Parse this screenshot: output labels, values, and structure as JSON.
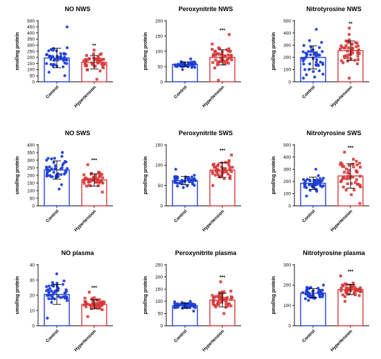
{
  "chart_data": [
    {
      "type": "bar",
      "title": "NO NWS",
      "ylabel": "nmol/mg protein",
      "ylim": [
        0,
        500
      ],
      "yticks": [
        0,
        50,
        100,
        150,
        200,
        250,
        300,
        350,
        400,
        450,
        500
      ],
      "categories": [
        "Control",
        "Hypertension"
      ],
      "values": [
        195,
        160
      ],
      "errors": [
        80,
        55
      ],
      "significance": [
        "",
        "**"
      ],
      "point_ranges": [
        [
          50,
          450
        ],
        [
          20,
          260
        ]
      ],
      "colors": {
        "control": "#1f3fd6",
        "hypertension": "#d63a3a"
      }
    },
    {
      "type": "bar",
      "title": "Peroxynitrite NWS",
      "ylabel": "pmol/mg protein",
      "ylim": [
        0,
        200
      ],
      "yticks": [
        0,
        50,
        100,
        150,
        200
      ],
      "categories": [
        "Control",
        "Hypertension"
      ],
      "values": [
        57,
        80
      ],
      "errors": [
        8,
        25
      ],
      "significance": [
        "",
        "***"
      ],
      "point_ranges": [
        [
          40,
          75
        ],
        [
          5,
          155
        ]
      ],
      "colors": {
        "control": "#1f3fd6",
        "hypertension": "#d63a3a"
      }
    },
    {
      "type": "bar",
      "title": "Nitrotyrosine NWS",
      "ylabel": "pmol/mg protein",
      "ylim": [
        0,
        500
      ],
      "yticks": [
        0,
        100,
        200,
        300,
        400,
        500
      ],
      "categories": [
        "Control",
        "Hypertension"
      ],
      "values": [
        200,
        255
      ],
      "errors": [
        95,
        80
      ],
      "significance": [
        "",
        "**"
      ],
      "point_ranges": [
        [
          30,
          430
        ],
        [
          30,
          440
        ]
      ],
      "colors": {
        "control": "#1f3fd6",
        "hypertension": "#d63a3a"
      }
    },
    {
      "type": "bar",
      "title": "NO SWS",
      "ylabel": "umol/mg protein",
      "ylim": [
        0,
        400
      ],
      "yticks": [
        0,
        50,
        100,
        150,
        200,
        250,
        300,
        350,
        400
      ],
      "categories": [
        "Control",
        "Hypertension"
      ],
      "values": [
        235,
        170
      ],
      "errors": [
        60,
        40
      ],
      "significance": [
        "",
        "***"
      ],
      "point_ranges": [
        [
          110,
          350
        ],
        [
          90,
          270
        ]
      ],
      "colors": {
        "control": "#1f3fd6",
        "hypertension": "#d63a3a"
      }
    },
    {
      "type": "bar",
      "title": "Peroxynitrite SWS",
      "ylabel": "pmol/mg protein",
      "ylim": [
        0,
        150
      ],
      "yticks": [
        0,
        50,
        100,
        150
      ],
      "categories": [
        "Control",
        "Hypertension"
      ],
      "values": [
        62,
        88
      ],
      "errors": [
        10,
        18
      ],
      "significance": [
        "",
        "***"
      ],
      "point_ranges": [
        [
          45,
          90
        ],
        [
          50,
          125
        ]
      ],
      "colors": {
        "control": "#1f3fd6",
        "hypertension": "#d63a3a"
      }
    },
    {
      "type": "bar",
      "title": "Nitrotyrosine SWS",
      "ylabel": "pmol/mg protein",
      "ylim": [
        0,
        500
      ],
      "yticks": [
        0,
        100,
        200,
        300,
        400,
        500
      ],
      "categories": [
        "Control",
        "Hypertension"
      ],
      "values": [
        185,
        245
      ],
      "errors": [
        50,
        100
      ],
      "significance": [
        "",
        "***"
      ],
      "point_ranges": [
        [
          80,
          300
        ],
        [
          20,
          440
        ]
      ],
      "colors": {
        "control": "#1f3fd6",
        "hypertension": "#d63a3a"
      }
    },
    {
      "type": "bar",
      "title": "NO plasma",
      "ylabel": "umol/mg protein",
      "ylim": [
        0,
        40
      ],
      "yticks": [
        0,
        10,
        20,
        30,
        40
      ],
      "categories": [
        "Control",
        "Hypertension"
      ],
      "values": [
        20.5,
        14
      ],
      "errors": [
        6.5,
        3
      ],
      "significance": [
        "",
        "***"
      ],
      "point_ranges": [
        [
          5,
          34
        ],
        [
          6,
          22
        ]
      ],
      "colors": {
        "control": "#1f3fd6",
        "hypertension": "#d63a3a"
      }
    },
    {
      "type": "bar",
      "title": "Peroxynitrite plasma",
      "ylabel": "pmol/mg protein",
      "ylim": [
        0,
        250
      ],
      "yticks": [
        0,
        50,
        100,
        150,
        200,
        250
      ],
      "categories": [
        "Control",
        "Hypertension"
      ],
      "values": [
        82,
        105
      ],
      "errors": [
        10,
        28
      ],
      "significance": [
        "",
        "***"
      ],
      "point_ranges": [
        [
          60,
          100
        ],
        [
          50,
          180
        ]
      ],
      "colors": {
        "control": "#1f3fd6",
        "hypertension": "#d63a3a"
      }
    },
    {
      "type": "bar",
      "title": "Nitrotyrosine plasma",
      "ylabel": "pmol/mg protein",
      "ylim": [
        0,
        300
      ],
      "yticks": [
        0,
        100,
        200,
        300
      ],
      "categories": [
        "Control",
        "Hypertension"
      ],
      "values": [
        160,
        178
      ],
      "errors": [
        22,
        25
      ],
      "significance": [
        "",
        "***"
      ],
      "point_ranges": [
        [
          125,
          200
        ],
        [
          120,
          245
        ]
      ],
      "colors": {
        "control": "#1f3fd6",
        "hypertension": "#d63a3a"
      }
    }
  ]
}
